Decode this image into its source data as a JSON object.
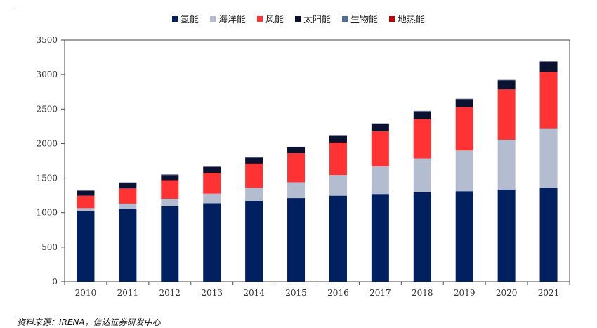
{
  "chart_data": {
    "type": "bar",
    "stacked": true,
    "title": "",
    "xlabel": "",
    "ylabel": "",
    "ylim": [
      0,
      3500
    ],
    "yticks": [
      0,
      500,
      1000,
      1500,
      2000,
      2500,
      3000,
      3500
    ],
    "categories": [
      "2010",
      "2011",
      "2012",
      "2013",
      "2014",
      "2015",
      "2016",
      "2017",
      "2018",
      "2019",
      "2020",
      "2021"
    ],
    "series": [
      {
        "name": "氢能",
        "color": "#002060",
        "values": [
          1025,
          1060,
          1090,
          1135,
          1170,
          1210,
          1245,
          1270,
          1295,
          1310,
          1335,
          1360
        ]
      },
      {
        "name": "海洋能",
        "color": "#b4bdd0",
        "values": [
          40,
          70,
          110,
          140,
          190,
          230,
          300,
          400,
          490,
          590,
          720,
          860
        ]
      },
      {
        "name": "风能",
        "color": "#ff3333",
        "values": [
          180,
          220,
          270,
          300,
          350,
          420,
          470,
          510,
          570,
          630,
          730,
          820
        ]
      },
      {
        "name": "太阳能",
        "color": "#0a1230",
        "values": [
          70,
          80,
          75,
          85,
          85,
          85,
          100,
          105,
          110,
          110,
          130,
          145
        ]
      },
      {
        "name": "生物能",
        "color": "#4f6fa0",
        "values": [
          8,
          8,
          8,
          8,
          8,
          8,
          8,
          8,
          8,
          8,
          8,
          8
        ]
      },
      {
        "name": "地热能",
        "color": "#c00000",
        "values": [
          1,
          1,
          1,
          1,
          1,
          1,
          1,
          1,
          1,
          1,
          1,
          1
        ]
      }
    ]
  },
  "source_text": "资料来源：IRENA，信达证券研发中心"
}
